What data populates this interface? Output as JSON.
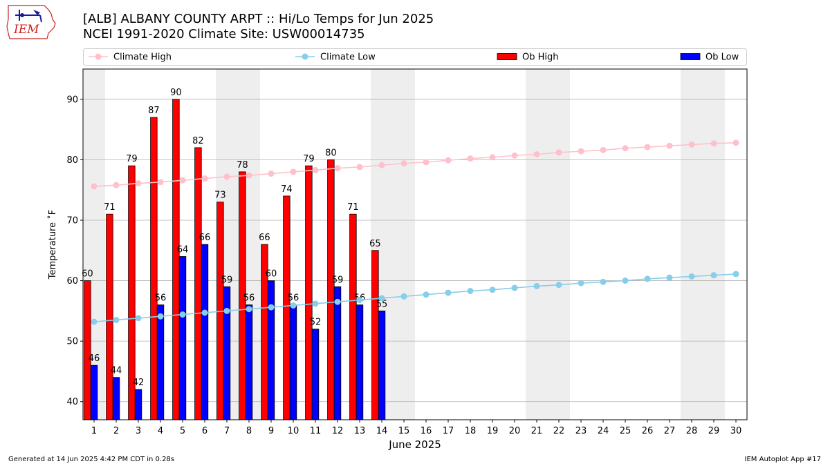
{
  "header": {
    "title_line1": "[ALB] ALBANY COUNTY ARPT :: Hi/Lo Temps for Jun 2025",
    "title_line2": "NCEI 1991-2020 Climate Site: USW00014735",
    "logo_text": "IEM"
  },
  "footer": {
    "generated": "Generated at 14 Jun 2025 4:42 PM CDT in 0.28s",
    "app": "IEM Autoplot App #17"
  },
  "chart_data": {
    "type": "bar",
    "xlabel": "June 2025",
    "ylabel": "Temperature ˚F",
    "xlim": [
      0.5,
      30.5
    ],
    "ylim": [
      37,
      95
    ],
    "yticks": [
      40,
      50,
      60,
      70,
      80,
      90
    ],
    "grid": "horizontal",
    "legend_position": "top",
    "weekend_shading_days": [
      1,
      7,
      8,
      14,
      15,
      21,
      22,
      28,
      29
    ],
    "days": [
      1,
      2,
      3,
      4,
      5,
      6,
      7,
      8,
      9,
      10,
      11,
      12,
      13,
      14,
      15,
      16,
      17,
      18,
      19,
      20,
      21,
      22,
      23,
      24,
      25,
      26,
      27,
      28,
      29,
      30
    ],
    "series": [
      {
        "name": "Climate High",
        "kind": "line",
        "color": "#ffc0cb",
        "values": [
          75.6,
          75.8,
          76.1,
          76.3,
          76.6,
          76.9,
          77.2,
          77.4,
          77.7,
          78.0,
          78.3,
          78.6,
          78.8,
          79.1,
          79.4,
          79.6,
          79.9,
          80.2,
          80.4,
          80.7,
          80.9,
          81.2,
          81.4,
          81.6,
          81.9,
          82.1,
          82.3,
          82.5,
          82.7,
          82.8
        ]
      },
      {
        "name": "Climate Low",
        "kind": "line",
        "color": "#87ceeb",
        "values": [
          53.2,
          53.5,
          53.8,
          54.1,
          54.4,
          54.7,
          55.0,
          55.3,
          55.6,
          55.9,
          56.2,
          56.5,
          56.8,
          57.1,
          57.4,
          57.7,
          58.0,
          58.3,
          58.5,
          58.8,
          59.1,
          59.3,
          59.6,
          59.8,
          60.0,
          60.3,
          60.5,
          60.7,
          60.9,
          61.1
        ]
      },
      {
        "name": "Ob High",
        "kind": "bar",
        "color": "#ff0000",
        "values": [
          60,
          71,
          79,
          87,
          90,
          82,
          73,
          78,
          66,
          74,
          79,
          80,
          71,
          65
        ]
      },
      {
        "name": "Ob Low",
        "kind": "bar",
        "color": "#0000ff",
        "values": [
          46,
          44,
          42,
          56,
          64,
          66,
          59,
          56,
          60,
          56,
          52,
          59,
          56,
          55
        ]
      }
    ]
  }
}
